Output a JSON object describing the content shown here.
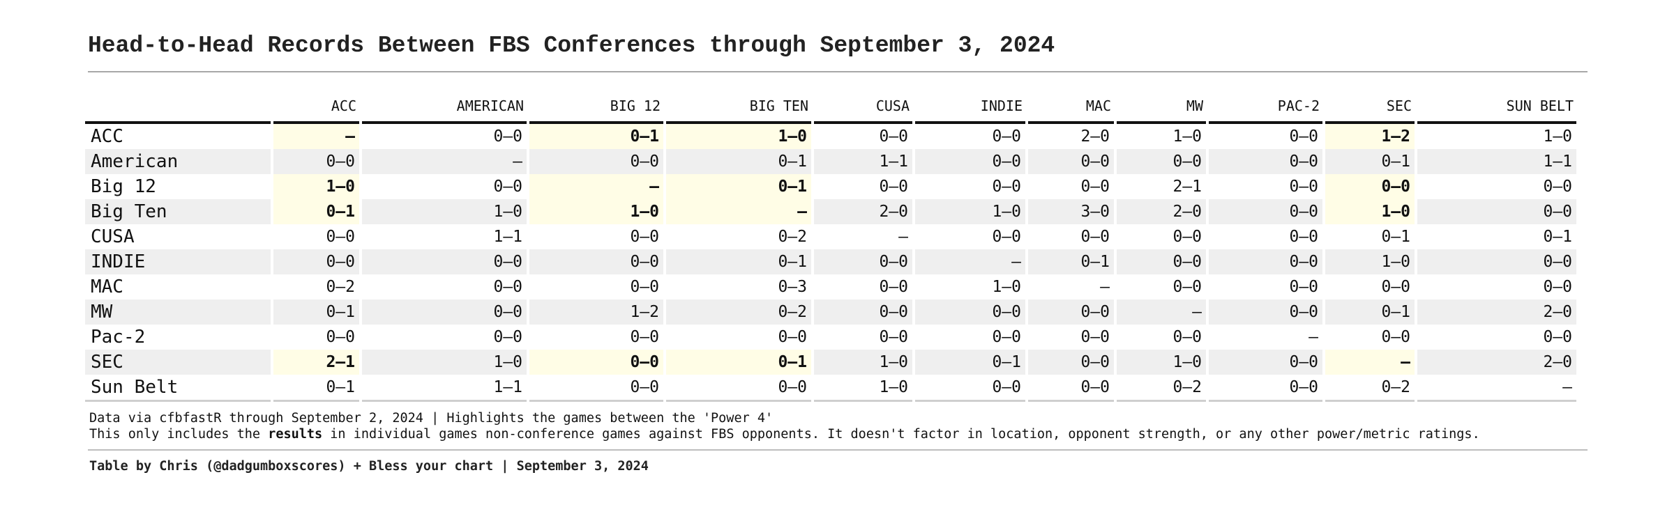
{
  "title": "Head-to-Head Records Between FBS Conferences through September 3, 2024",
  "chart_data": {
    "type": "table",
    "columns": [
      "ACC",
      "AMERICAN",
      "BIG 12",
      "BIG TEN",
      "CUSA",
      "INDIE",
      "MAC",
      "MW",
      "PAC-2",
      "SEC",
      "SUN BELT"
    ],
    "power4_highlight": [
      "ACC",
      "Big 12",
      "Big Ten",
      "SEC"
    ],
    "rows": [
      {
        "label": "ACC",
        "values": [
          "–",
          "0–0",
          "0–1",
          "1–0",
          "0–0",
          "0–0",
          "2–0",
          "1–0",
          "0–0",
          "1–2",
          "1–0"
        ]
      },
      {
        "label": "American",
        "values": [
          "0–0",
          "–",
          "0–0",
          "0–1",
          "1–1",
          "0–0",
          "0–0",
          "0–0",
          "0–0",
          "0–1",
          "1–1"
        ]
      },
      {
        "label": "Big 12",
        "values": [
          "1–0",
          "0–0",
          "–",
          "0–1",
          "0–0",
          "0–0",
          "0–0",
          "2–1",
          "0–0",
          "0–0",
          "0–0"
        ]
      },
      {
        "label": "Big Ten",
        "values": [
          "0–1",
          "1–0",
          "1–0",
          "–",
          "2–0",
          "1–0",
          "3–0",
          "2–0",
          "0–0",
          "1–0",
          "0–0"
        ]
      },
      {
        "label": "CUSA",
        "values": [
          "0–0",
          "1–1",
          "0–0",
          "0–2",
          "–",
          "0–0",
          "0–0",
          "0–0",
          "0–0",
          "0–1",
          "0–1"
        ]
      },
      {
        "label": "INDIE",
        "values": [
          "0–0",
          "0–0",
          "0–0",
          "0–1",
          "0–0",
          "–",
          "0–1",
          "0–0",
          "0–0",
          "1–0",
          "0–0"
        ]
      },
      {
        "label": "MAC",
        "values": [
          "0–2",
          "0–0",
          "0–0",
          "0–3",
          "0–0",
          "1–0",
          "–",
          "0–0",
          "0–0",
          "0–0",
          "0–0"
        ]
      },
      {
        "label": "MW",
        "values": [
          "0–1",
          "0–0",
          "1–2",
          "0–2",
          "0–0",
          "0–0",
          "0–0",
          "–",
          "0–0",
          "0–1",
          "2–0"
        ]
      },
      {
        "label": "Pac-2",
        "values": [
          "0–0",
          "0–0",
          "0–0",
          "0–0",
          "0–0",
          "0–0",
          "0–0",
          "0–0",
          "–",
          "0–0",
          "0–0"
        ]
      },
      {
        "label": "SEC",
        "values": [
          "2–1",
          "1–0",
          "0–0",
          "0–1",
          "1–0",
          "0–1",
          "0–0",
          "1–0",
          "0–0",
          "–",
          "2–0"
        ]
      },
      {
        "label": "Sun Belt",
        "values": [
          "0–1",
          "1–1",
          "0–0",
          "0–0",
          "1–0",
          "0–0",
          "0–0",
          "0–2",
          "0–0",
          "0–2",
          "–"
        ]
      }
    ]
  },
  "notes": {
    "line1": "Data via cfbfastR through September 2, 2024 | Highlights the games between the 'Power 4'",
    "line2_pre": "This only includes the ",
    "line2_bold": "results",
    "line2_post": " in individual games non-conference games against FBS opponents. It doesn't factor in location, opponent strength, or any other power/metric ratings."
  },
  "credit": "Table by Chris (@dadgumboxscores) + Bless your chart | September 3, 2024",
  "colors": {
    "highlight": "#fffde6",
    "stripe": "#efefef",
    "header_rule": "#111111"
  }
}
